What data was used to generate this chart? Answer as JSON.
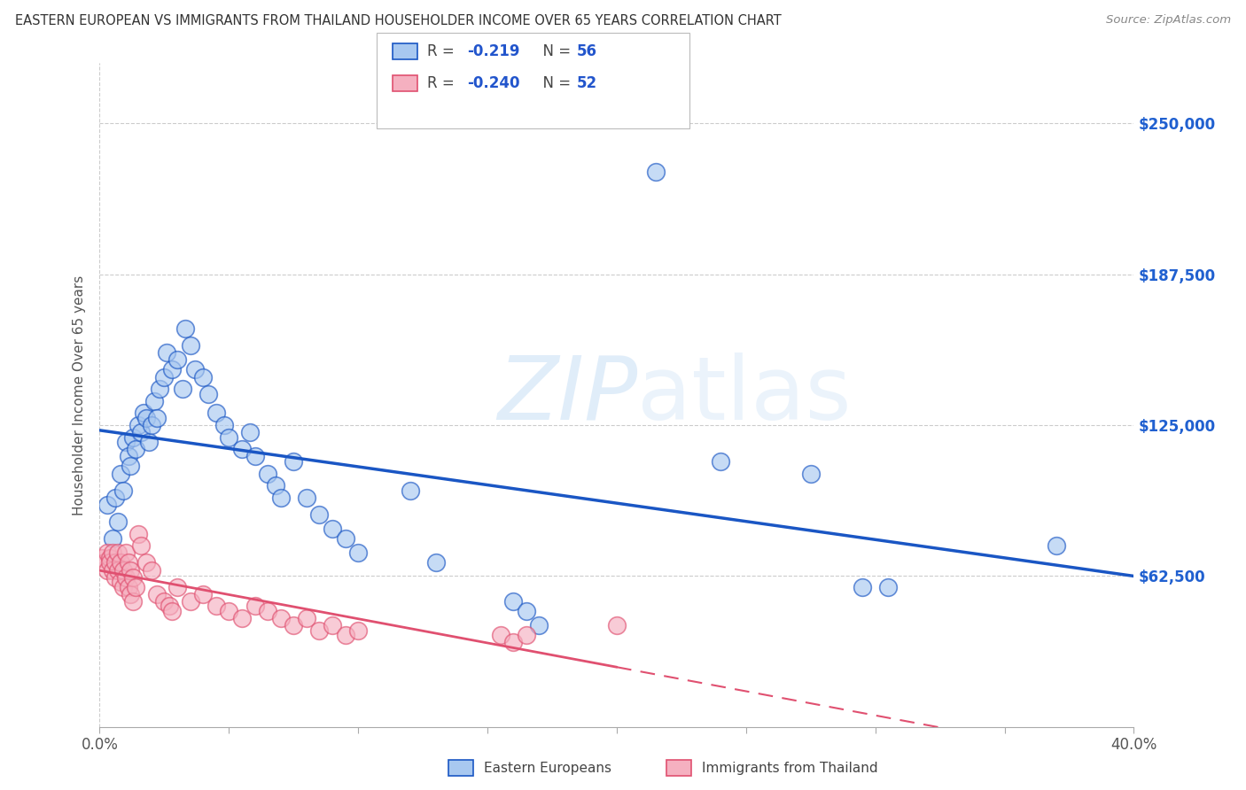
{
  "title": "EASTERN EUROPEAN VS IMMIGRANTS FROM THAILAND HOUSEHOLDER INCOME OVER 65 YEARS CORRELATION CHART",
  "source": "Source: ZipAtlas.com",
  "ylabel": "Householder Income Over 65 years",
  "xlim": [
    0.0,
    0.4
  ],
  "ylim": [
    0,
    275000
  ],
  "yticks": [
    0,
    62500,
    125000,
    187500,
    250000
  ],
  "ytick_labels": [
    "",
    "$62,500",
    "$125,000",
    "$187,500",
    "$250,000"
  ],
  "xticks": [
    0.0,
    0.05,
    0.1,
    0.15,
    0.2,
    0.25,
    0.3,
    0.35,
    0.4
  ],
  "blue_color": "#a8c8f0",
  "pink_color": "#f5b0c0",
  "blue_line_color": "#1a56c4",
  "pink_line_color": "#e05070",
  "blue_r": "-0.219",
  "blue_n": "56",
  "pink_r": "-0.240",
  "pink_n": "52",
  "blue_scatter": [
    [
      0.003,
      92000
    ],
    [
      0.005,
      78000
    ],
    [
      0.006,
      95000
    ],
    [
      0.007,
      85000
    ],
    [
      0.008,
      105000
    ],
    [
      0.009,
      98000
    ],
    [
      0.01,
      118000
    ],
    [
      0.011,
      112000
    ],
    [
      0.012,
      108000
    ],
    [
      0.013,
      120000
    ],
    [
      0.014,
      115000
    ],
    [
      0.015,
      125000
    ],
    [
      0.016,
      122000
    ],
    [
      0.017,
      130000
    ],
    [
      0.018,
      128000
    ],
    [
      0.019,
      118000
    ],
    [
      0.02,
      125000
    ],
    [
      0.021,
      135000
    ],
    [
      0.022,
      128000
    ],
    [
      0.023,
      140000
    ],
    [
      0.025,
      145000
    ],
    [
      0.026,
      155000
    ],
    [
      0.028,
      148000
    ],
    [
      0.03,
      152000
    ],
    [
      0.032,
      140000
    ],
    [
      0.033,
      165000
    ],
    [
      0.035,
      158000
    ],
    [
      0.037,
      148000
    ],
    [
      0.04,
      145000
    ],
    [
      0.042,
      138000
    ],
    [
      0.045,
      130000
    ],
    [
      0.048,
      125000
    ],
    [
      0.05,
      120000
    ],
    [
      0.055,
      115000
    ],
    [
      0.058,
      122000
    ],
    [
      0.06,
      112000
    ],
    [
      0.065,
      105000
    ],
    [
      0.068,
      100000
    ],
    [
      0.07,
      95000
    ],
    [
      0.075,
      110000
    ],
    [
      0.08,
      95000
    ],
    [
      0.085,
      88000
    ],
    [
      0.09,
      82000
    ],
    [
      0.095,
      78000
    ],
    [
      0.1,
      72000
    ],
    [
      0.12,
      98000
    ],
    [
      0.13,
      68000
    ],
    [
      0.16,
      52000
    ],
    [
      0.165,
      48000
    ],
    [
      0.17,
      42000
    ],
    [
      0.215,
      230000
    ],
    [
      0.24,
      110000
    ],
    [
      0.275,
      105000
    ],
    [
      0.295,
      58000
    ],
    [
      0.305,
      58000
    ],
    [
      0.37,
      75000
    ]
  ],
  "pink_scatter": [
    [
      0.001,
      70000
    ],
    [
      0.002,
      68000
    ],
    [
      0.003,
      72000
    ],
    [
      0.003,
      65000
    ],
    [
      0.004,
      70000
    ],
    [
      0.004,
      68000
    ],
    [
      0.005,
      72000
    ],
    [
      0.005,
      65000
    ],
    [
      0.006,
      68000
    ],
    [
      0.006,
      62000
    ],
    [
      0.007,
      72000
    ],
    [
      0.007,
      65000
    ],
    [
      0.008,
      68000
    ],
    [
      0.008,
      60000
    ],
    [
      0.009,
      65000
    ],
    [
      0.009,
      58000
    ],
    [
      0.01,
      72000
    ],
    [
      0.01,
      62000
    ],
    [
      0.011,
      68000
    ],
    [
      0.011,
      58000
    ],
    [
      0.012,
      65000
    ],
    [
      0.012,
      55000
    ],
    [
      0.013,
      62000
    ],
    [
      0.013,
      52000
    ],
    [
      0.014,
      58000
    ],
    [
      0.015,
      80000
    ],
    [
      0.016,
      75000
    ],
    [
      0.018,
      68000
    ],
    [
      0.02,
      65000
    ],
    [
      0.022,
      55000
    ],
    [
      0.025,
      52000
    ],
    [
      0.027,
      50000
    ],
    [
      0.028,
      48000
    ],
    [
      0.03,
      58000
    ],
    [
      0.035,
      52000
    ],
    [
      0.04,
      55000
    ],
    [
      0.045,
      50000
    ],
    [
      0.05,
      48000
    ],
    [
      0.055,
      45000
    ],
    [
      0.06,
      50000
    ],
    [
      0.065,
      48000
    ],
    [
      0.07,
      45000
    ],
    [
      0.075,
      42000
    ],
    [
      0.08,
      45000
    ],
    [
      0.085,
      40000
    ],
    [
      0.09,
      42000
    ],
    [
      0.095,
      38000
    ],
    [
      0.1,
      40000
    ],
    [
      0.155,
      38000
    ],
    [
      0.16,
      35000
    ],
    [
      0.165,
      38000
    ],
    [
      0.2,
      42000
    ]
  ]
}
